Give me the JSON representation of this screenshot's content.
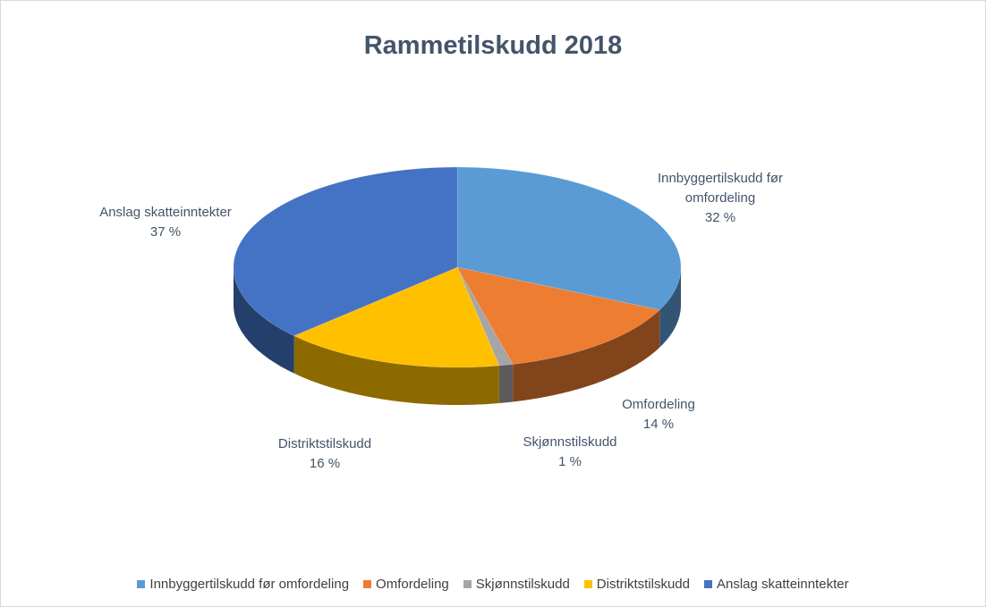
{
  "chart_data": {
    "type": "pie",
    "title": "Rammetilskudd 2018",
    "categories": [
      "Innbyggertilskudd før omfordeling",
      "Omfordeling",
      "Skjønnstilskudd",
      "Distriktstilskudd",
      "Anslag skatteinntekter"
    ],
    "values": [
      32,
      14,
      1,
      16,
      37
    ],
    "value_labels": [
      "32 %",
      "14 %",
      "1 %",
      "16 %",
      "37 %"
    ],
    "colors": [
      "#5b9bd5",
      "#ed7d31",
      "#a5a5a5",
      "#ffc000",
      "#4472c4"
    ],
    "legend": "bottom"
  }
}
